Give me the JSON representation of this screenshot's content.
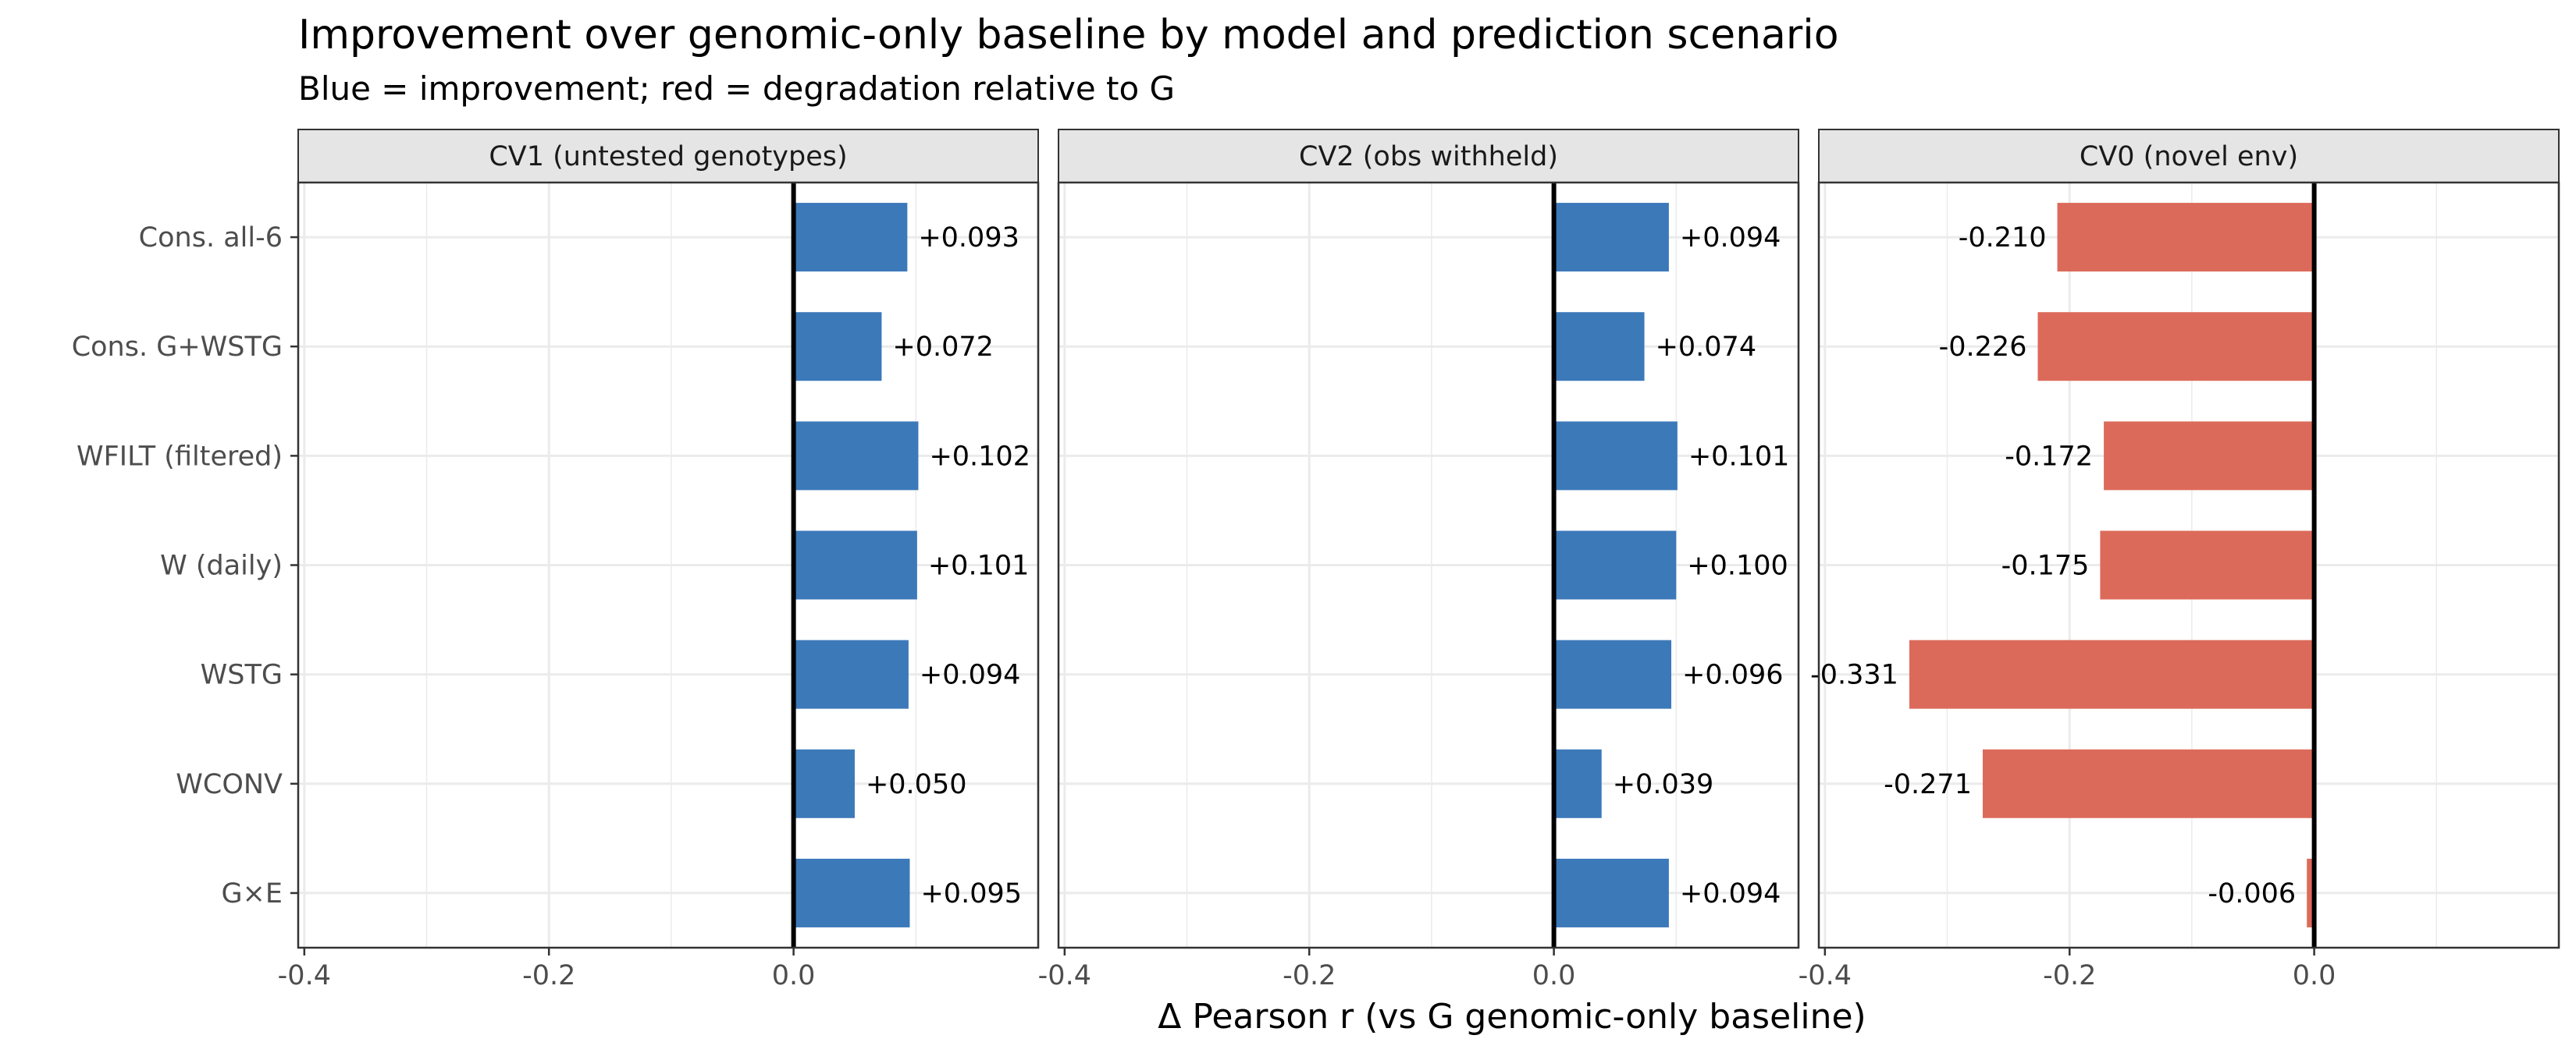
{
  "title": "Improvement over genomic-only baseline by model and prediction scenario",
  "subtitle": "Blue = improvement; red = degradation relative to G",
  "xlabel": "Δ Pearson r (vs G genomic-only baseline)",
  "colors": {
    "positive": "#3c79b9",
    "negative": "#dc6a5a",
    "zero_line": "#000000",
    "grid": "#ebebeb",
    "strip_bg": "#e5e5e5"
  },
  "chart_data": {
    "type": "bar",
    "orientation": "horizontal",
    "categories": [
      "Cons. all-6",
      "Cons. G+WSTG",
      "WFILT (filtered)",
      "W (daily)",
      "WSTG",
      "WCONV",
      "G×E"
    ],
    "xlim": [
      -0.405,
      0.2
    ],
    "xticks": [
      -0.4,
      -0.2,
      0.0
    ],
    "xtick_labels": [
      "-0.4",
      "-0.2",
      "0.0"
    ],
    "grid": true,
    "panels": [
      {
        "name": "CV1 (untested genotypes)",
        "values": [
          0.093,
          0.072,
          0.102,
          0.101,
          0.094,
          0.05,
          0.095
        ],
        "labels": [
          "+0.093",
          "+0.072",
          "+0.102",
          "+0.101",
          "+0.094",
          "+0.050",
          "+0.095"
        ]
      },
      {
        "name": "CV2 (obs withheld)",
        "values": [
          0.094,
          0.074,
          0.101,
          0.1,
          0.096,
          0.039,
          0.094
        ],
        "labels": [
          "+0.094",
          "+0.074",
          "+0.101",
          "+0.100",
          "+0.096",
          "+0.039",
          "+0.094"
        ]
      },
      {
        "name": "CV0 (novel env)",
        "values": [
          -0.21,
          -0.226,
          -0.172,
          -0.175,
          -0.331,
          -0.271,
          -0.006
        ],
        "labels": [
          "-0.210",
          "-0.226",
          "-0.172",
          "-0.175",
          "-0.331",
          "-0.271",
          "-0.006"
        ]
      }
    ]
  }
}
